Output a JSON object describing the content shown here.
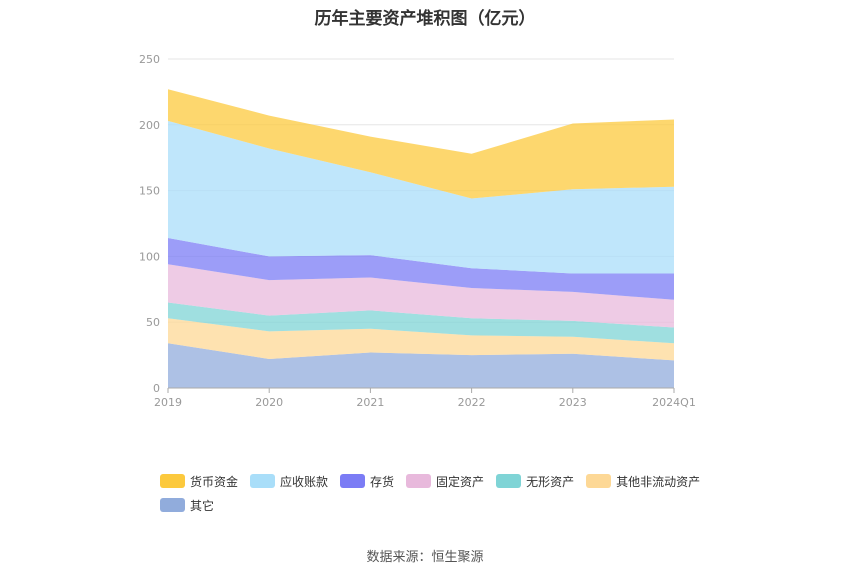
{
  "title": "历年主要资产堆积图（亿元）",
  "source": "数据来源：恒生聚源",
  "chart_data": {
    "type": "area",
    "stacked": true,
    "categories": [
      "2019",
      "2020",
      "2021",
      "2022",
      "2023",
      "2024Q1"
    ],
    "ylim": [
      0,
      250
    ],
    "yticks": [
      0,
      50,
      100,
      150,
      200,
      250
    ],
    "grid": true,
    "legend_position": "bottom",
    "series": [
      {
        "name": "其它",
        "color": "#91acdc",
        "values": [
          34,
          22,
          27,
          25,
          26,
          21
        ]
      },
      {
        "name": "其他非流动资产",
        "color": "#fdd896",
        "values": [
          19,
          21,
          18,
          15,
          13,
          13
        ]
      },
      {
        "name": "无形资产",
        "color": "#7fd4d6",
        "values": [
          12,
          12,
          14,
          13,
          12,
          12
        ]
      },
      {
        "name": "固定资产",
        "color": "#e8b9dc",
        "values": [
          29,
          27,
          25,
          23,
          22,
          21
        ]
      },
      {
        "name": "存货",
        "color": "#7b7cf5",
        "values": [
          20,
          18,
          17,
          15,
          14,
          20
        ]
      },
      {
        "name": "应收账款",
        "color": "#a9def9",
        "values": [
          89,
          82,
          63,
          53,
          64,
          66
        ]
      },
      {
        "name": "货币资金",
        "color": "#fcc93d",
        "values": [
          24,
          25,
          27,
          34,
          50,
          51
        ]
      }
    ],
    "legend_order": [
      "货币资金",
      "应收账款",
      "存货",
      "固定资产",
      "无形资产",
      "其他非流动资产",
      "其它"
    ]
  }
}
